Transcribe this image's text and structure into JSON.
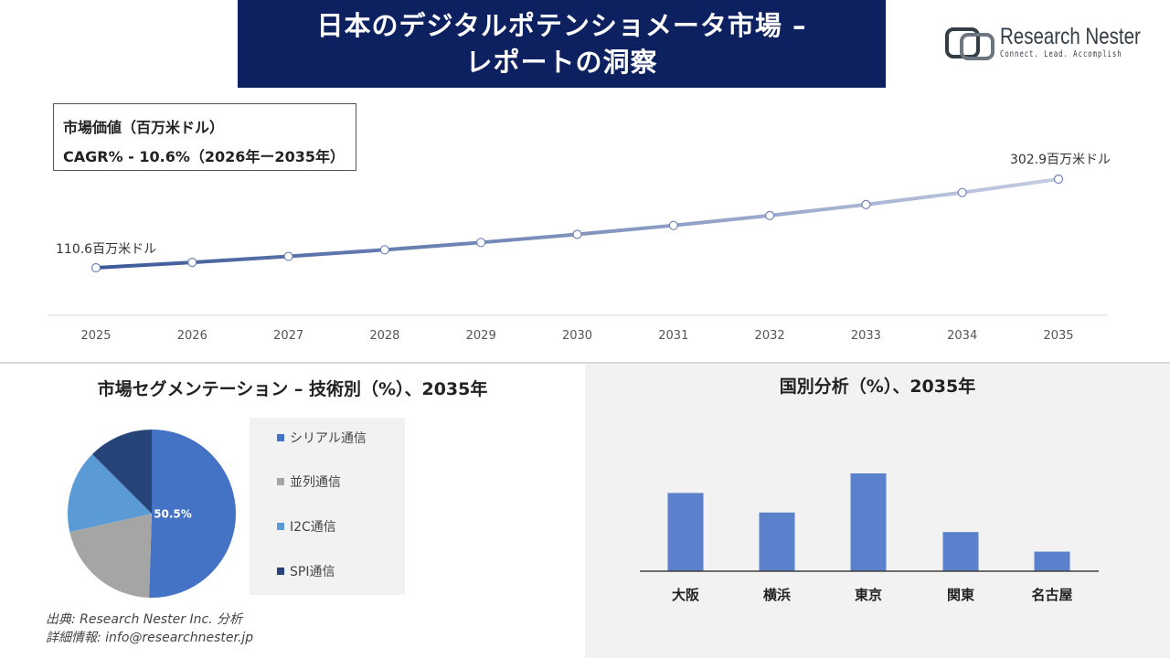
{
  "header": {
    "title_line1": "日本のデジタルポテンショメータ市場 –",
    "title_line2": "レポートの洞察"
  },
  "logo": {
    "name": "Research Nester",
    "tagline": "Connect. Lead. Accomplish"
  },
  "info_box": {
    "line1": "市場価値（百万米ドル）",
    "line2": "CAGR% - 10.6%（2026年ー2035年）"
  },
  "colors": {
    "banner": "#0d2160",
    "line_start": "#3b5998",
    "line_end": "#c5cde3",
    "bar": "#5b80cc"
  },
  "chart_data": [
    {
      "type": "line",
      "x": [
        "2025",
        "2026",
        "2027",
        "2028",
        "2029",
        "2030",
        "2031",
        "2032",
        "2033",
        "2034",
        "2035"
      ],
      "values": [
        110.6,
        122.3,
        135.3,
        149.6,
        165.5,
        183.0,
        202.4,
        223.9,
        247.6,
        273.8,
        302.9
      ],
      "data_labels": {
        "first": "110.6百万米ドル",
        "last": "302.9百万米ドル"
      },
      "grid": false
    },
    {
      "type": "pie",
      "title": "市場セグメンテーション – 技術別（%）、2035年",
      "slices": [
        {
          "label": "シリアル通信",
          "value": 50.5,
          "display": "50.5%",
          "color": "#4472c4"
        },
        {
          "label": "並列通信",
          "value": 21.0,
          "color": "#a5a5a5"
        },
        {
          "label": "I2C通信",
          "value": 16.0,
          "color": "#5b9bd5"
        },
        {
          "label": "SPI通信",
          "value": 12.5,
          "color": "#264478"
        }
      ],
      "legend_position": "right"
    },
    {
      "type": "bar",
      "title": "国別分析（%）、2035年",
      "categories": [
        "大阪",
        "横浜",
        "東京",
        "関東",
        "名古屋"
      ],
      "values": [
        28,
        21,
        35,
        14,
        7
      ]
    }
  ],
  "source": {
    "line1": "出典: Research Nester Inc. 分析",
    "line2": "詳細情報: info@researchnester.jp"
  }
}
